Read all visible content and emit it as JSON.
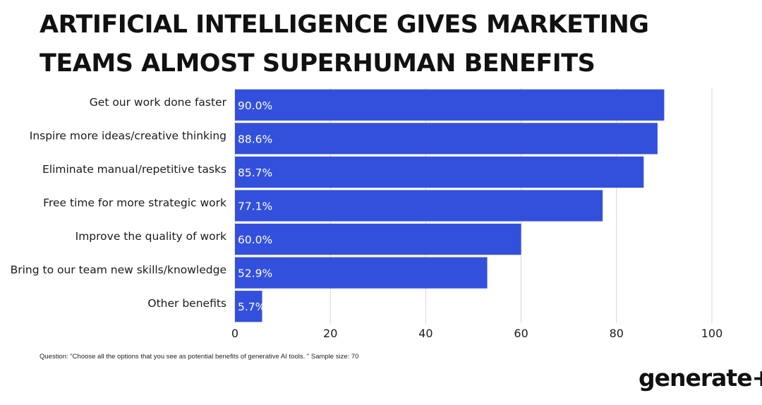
{
  "title_lines": [
    "ARTIFICIAL INTELLIGENCE GIVES MARKETING",
    "TEAMS ALMOST SUPERHUMAN BENEFITS"
  ],
  "footnote": "Question: \"Choose all the options that you see as potential benefits of generative AI tools. \" Sample size: 70",
  "brand": "generate+",
  "chart_data": {
    "type": "bar",
    "orientation": "horizontal",
    "categories": [
      "Get our work done faster",
      "Inspire more ideas/creative thinking",
      "Eliminate manual/repetitive tasks",
      "Free time for more strategic work",
      "Improve the quality of work",
      "Bring to our team new skills/knowledge",
      "Other benefits"
    ],
    "values": [
      90.0,
      88.6,
      85.7,
      77.1,
      60.0,
      52.9,
      5.7
    ],
    "value_labels": [
      "90.0%",
      "88.6%",
      "85.7%",
      "77.1%",
      "60.0%",
      "52.9%",
      "5.7%"
    ],
    "xlim": [
      0,
      100
    ],
    "xticks": [
      0,
      20,
      40,
      60,
      80,
      100
    ],
    "grid": "vertical",
    "bar_color": "#3350dd",
    "grid_color": "#d6d6d6"
  }
}
